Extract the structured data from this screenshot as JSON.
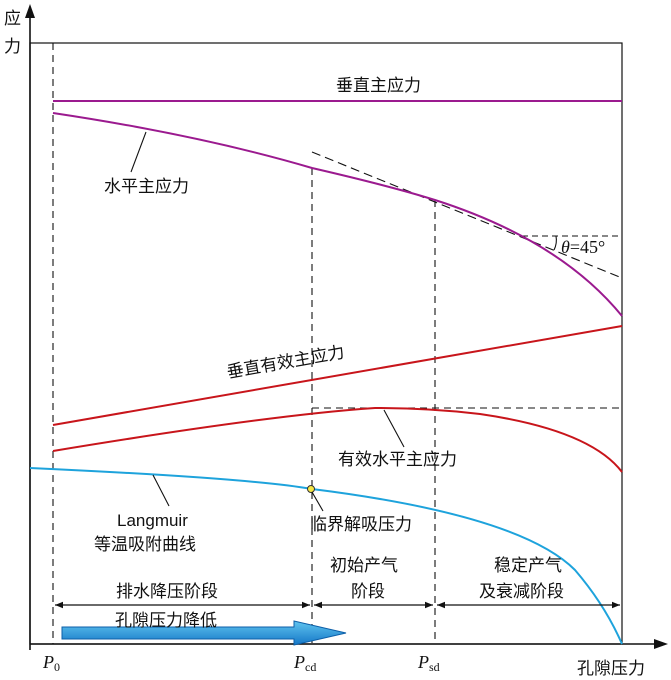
{
  "axes": {
    "y_label_line1": "应",
    "y_label_line2": "力",
    "x_label": "孔隙压力"
  },
  "x_ticks": {
    "p0_main": "P",
    "p0_sub": "0",
    "pcd_main": "P",
    "pcd_sub": "cd",
    "psd_main": "P",
    "psd_sub": "sd"
  },
  "curves": {
    "vertical_principal": "垂直主应力",
    "horizontal_principal": "水平主应力",
    "vertical_effective": "垂直有效主应力",
    "horizontal_effective": "有效水平主应力",
    "langmuir_1": "Langmuir",
    "langmuir_2": "等温吸附曲线",
    "critical_desorption": "临界解吸压力"
  },
  "angle": {
    "theta": "θ",
    "value": "=45°"
  },
  "stages": {
    "drainage": "排水降压阶段",
    "pressure_drop": "孔隙压力降低",
    "initial_1": "初始产气",
    "initial_2": "阶段",
    "stable_1": "稳定产气",
    "stable_2": "及衰减阶段"
  },
  "colors": {
    "purple": "#9b1a8f",
    "red": "#c8151b",
    "blue": "#1ea3dc",
    "arrow_fill": "#1a8fd6",
    "marker": "#f5e642"
  }
}
